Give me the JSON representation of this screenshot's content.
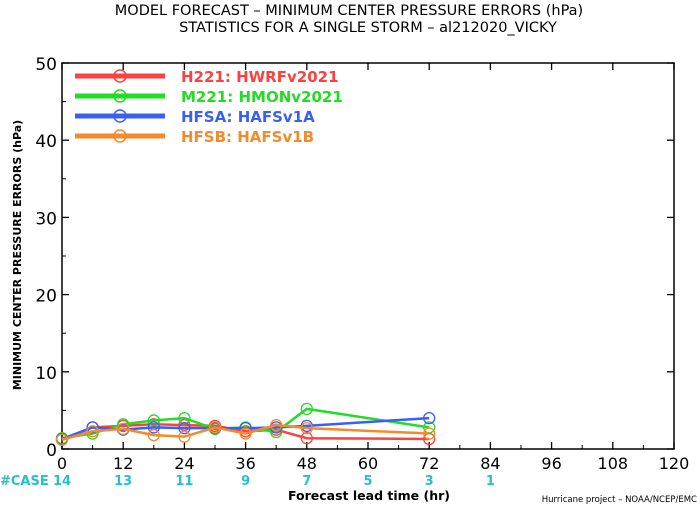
{
  "chart_data": {
    "type": "line",
    "title": "MODEL FORECAST – MINIMUM CENTER PRESSURE ERRORS (hPa)",
    "subtitle": "STATISTICS FOR A SINGLE STORM – al212020_VICKY",
    "xlabel": "Forecast lead time (hr)",
    "ylabel": "MINIMUM CENTER PRESSURE ERRORS (hPa)",
    "xlim": [
      0,
      120
    ],
    "ylim": [
      0,
      50
    ],
    "x_ticks": [
      0,
      12,
      24,
      36,
      48,
      60,
      72,
      84,
      96,
      108,
      120
    ],
    "y_ticks": [
      0,
      10,
      20,
      30,
      40,
      50
    ],
    "grid": false,
    "legend_position": "top-left",
    "x": [
      0,
      6,
      12,
      18,
      24,
      30,
      36,
      42,
      48,
      72
    ],
    "series": [
      {
        "name": "H221: HWRFv2021",
        "color": "#ff4040",
        "values": [
          1.2,
          2.8,
          3.0,
          3.2,
          3.1,
          3.0,
          2.3,
          2.5,
          1.4,
          1.3
        ]
      },
      {
        "name": "M221: HMONv2021",
        "color": "#22dd22",
        "values": [
          1.4,
          2.0,
          3.2,
          3.7,
          4.0,
          2.6,
          2.8,
          2.2,
          5.2,
          2.8
        ]
      },
      {
        "name": "HFSA: HAFSv1A",
        "color": "#3a5ff5",
        "values": [
          1.3,
          2.8,
          2.5,
          2.8,
          2.7,
          2.7,
          2.7,
          2.8,
          3.0,
          4.0
        ]
      },
      {
        "name": "HFSB: HAFSv1B",
        "color": "#f58a2c",
        "values": [
          1.2,
          2.3,
          2.6,
          1.8,
          1.6,
          2.8,
          2.0,
          3.1,
          2.7,
          2.0
        ]
      }
    ],
    "case_label": "#CASE",
    "case_color": "#28c0c8",
    "case_counts": [
      {
        "x": 0,
        "n": "14"
      },
      {
        "x": 12,
        "n": "13"
      },
      {
        "x": 24,
        "n": "11"
      },
      {
        "x": 36,
        "n": "9"
      },
      {
        "x": 48,
        "n": "7"
      },
      {
        "x": 60,
        "n": "5"
      },
      {
        "x": 72,
        "n": "3"
      },
      {
        "x": 84,
        "n": "1"
      }
    ],
    "credit": "Hurricane project – NOAA/NCEP/EMC"
  }
}
